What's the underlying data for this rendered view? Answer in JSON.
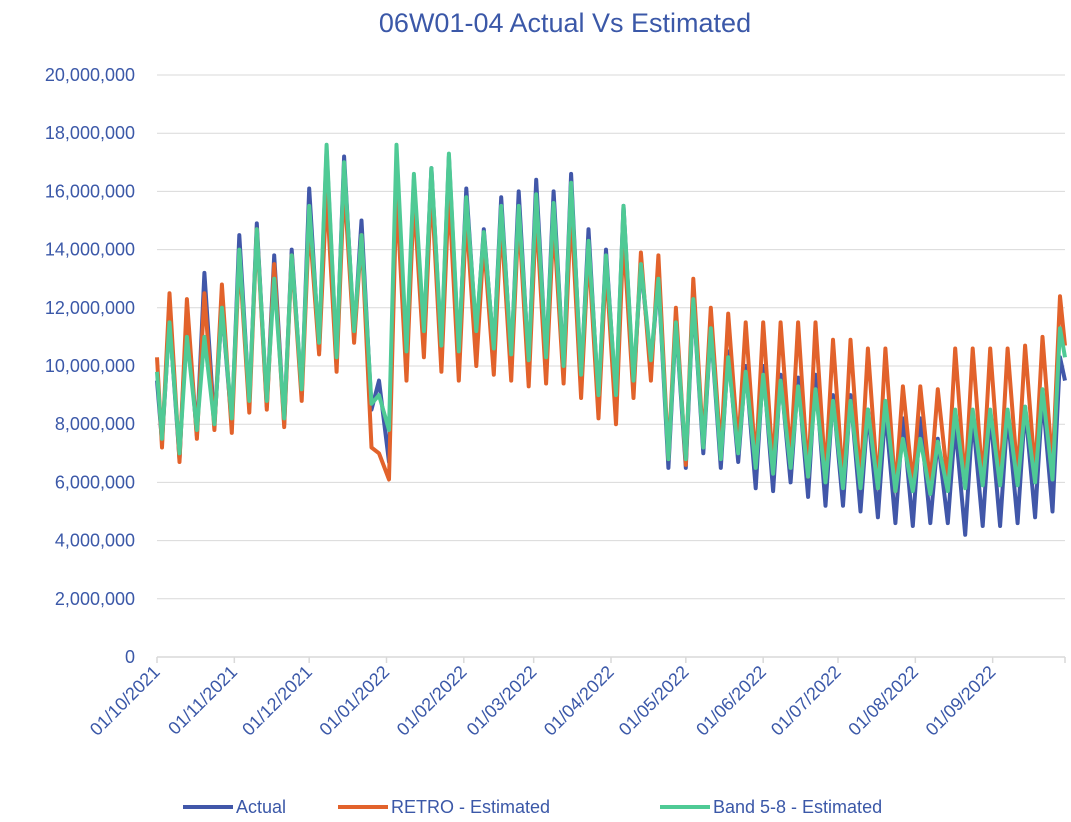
{
  "chart_data": {
    "type": "line",
    "title": "06W01-04 Actual Vs Estimated",
    "x": [
      "01/10/2021",
      "03/10/2021",
      "06/10/2021",
      "10/10/2021",
      "13/10/2021",
      "17/10/2021",
      "20/10/2021",
      "24/10/2021",
      "27/10/2021",
      "31/10/2021",
      "03/11/2021",
      "07/11/2021",
      "10/11/2021",
      "14/11/2021",
      "17/11/2021",
      "21/11/2021",
      "24/11/2021",
      "28/11/2021",
      "01/12/2021",
      "05/12/2021",
      "08/12/2021",
      "12/12/2021",
      "15/12/2021",
      "19/12/2021",
      "22/12/2021",
      "26/12/2021",
      "29/12/2021",
      "02/01/2022",
      "05/01/2022",
      "09/01/2022",
      "12/01/2022",
      "16/01/2022",
      "19/01/2022",
      "23/01/2022",
      "26/01/2022",
      "30/01/2022",
      "02/02/2022",
      "06/02/2022",
      "09/02/2022",
      "13/02/2022",
      "16/02/2022",
      "20/02/2022",
      "23/02/2022",
      "27/02/2022",
      "02/03/2022",
      "06/03/2022",
      "09/03/2022",
      "13/03/2022",
      "16/03/2022",
      "20/03/2022",
      "23/03/2022",
      "27/03/2022",
      "30/03/2022",
      "03/04/2022",
      "06/04/2022",
      "10/04/2022",
      "13/04/2022",
      "17/04/2022",
      "20/04/2022",
      "24/04/2022",
      "27/04/2022",
      "01/05/2022",
      "04/05/2022",
      "08/05/2022",
      "11/05/2022",
      "15/05/2022",
      "18/05/2022",
      "22/05/2022",
      "25/05/2022",
      "29/05/2022",
      "01/06/2022",
      "05/06/2022",
      "08/06/2022",
      "12/06/2022",
      "15/06/2022",
      "19/06/2022",
      "22/06/2022",
      "26/06/2022",
      "29/06/2022",
      "03/07/2022",
      "06/07/2022",
      "10/07/2022",
      "13/07/2022",
      "17/07/2022",
      "20/07/2022",
      "24/07/2022",
      "27/07/2022",
      "31/07/2022",
      "03/08/2022",
      "07/08/2022",
      "10/08/2022",
      "14/08/2022",
      "17/08/2022",
      "21/08/2022",
      "24/08/2022",
      "28/08/2022",
      "31/08/2022",
      "04/09/2022",
      "07/09/2022",
      "11/09/2022",
      "14/09/2022",
      "18/09/2022",
      "21/09/2022",
      "25/09/2022",
      "28/09/2022",
      "30/09/2022"
    ],
    "series": [
      {
        "name": "Actual",
        "color": "#4157a9",
        "values": [
          9500000,
          7400000,
          11600000,
          6800000,
          11800000,
          7600000,
          13200000,
          8000000,
          12000000,
          8000000,
          14500000,
          8700000,
          14900000,
          8600000,
          13800000,
          8000000,
          14000000,
          9000000,
          16100000,
          10500000,
          17400000,
          10200000,
          17200000,
          11000000,
          15000000,
          8500000,
          9500000,
          6700000,
          16500000,
          10200000,
          16400000,
          11000000,
          16800000,
          10500000,
          17200000,
          10300000,
          16100000,
          11000000,
          14700000,
          10500000,
          15800000,
          10200000,
          16000000,
          10000000,
          16400000,
          10200000,
          16000000,
          9900000,
          16600000,
          9500000,
          14700000,
          8700000,
          14000000,
          8800000,
          15500000,
          9300000,
          13500000,
          10000000,
          13000000,
          6500000,
          11500000,
          6500000,
          12300000,
          7000000,
          11300000,
          6500000,
          10500000,
          6700000,
          10000000,
          5800000,
          10000000,
          5700000,
          9700000,
          6000000,
          9600000,
          5500000,
          9700000,
          5200000,
          9000000,
          5200000,
          9000000,
          5000000,
          8500000,
          4800000,
          8500000,
          4600000,
          8200000,
          4500000,
          8200000,
          4600000,
          7500000,
          4600000,
          8000000,
          4200000,
          8300000,
          4500000,
          8400000,
          4500000,
          8400000,
          4600000,
          8600000,
          4800000,
          9000000,
          5000000,
          10300000,
          9500000
        ]
      },
      {
        "name": "RETRO - Estimated",
        "color": "#e2622b",
        "values": [
          10300000,
          7200000,
          12500000,
          6700000,
          12300000,
          7500000,
          12500000,
          7800000,
          12800000,
          7700000,
          13800000,
          8400000,
          14700000,
          8500000,
          13500000,
          7900000,
          13800000,
          8800000,
          15000000,
          10400000,
          16000000,
          9800000,
          16300000,
          10800000,
          14500000,
          7200000,
          7000000,
          6100000,
          16000000,
          9500000,
          15800000,
          10300000,
          16200000,
          9800000,
          16000000,
          9500000,
          15200000,
          10000000,
          14300000,
          9700000,
          15000000,
          9500000,
          15200000,
          9300000,
          15300000,
          9400000,
          15000000,
          9400000,
          15400000,
          8900000,
          14000000,
          8200000,
          13500000,
          8000000,
          14500000,
          8900000,
          13900000,
          9500000,
          13800000,
          6800000,
          12000000,
          6600000,
          13000000,
          7300000,
          12000000,
          7000000,
          11800000,
          7200000,
          11500000,
          6600000,
          11500000,
          6500000,
          11500000,
          6800000,
          11500000,
          6200000,
          11500000,
          6200000,
          10900000,
          6000000,
          10900000,
          6000000,
          10600000,
          5800000,
          10600000,
          5700000,
          9300000,
          5900000,
          9300000,
          5900000,
          9200000,
          6000000,
          10600000,
          5900000,
          10600000,
          6000000,
          10600000,
          6000000,
          10600000,
          6200000,
          10700000,
          6300000,
          11000000,
          6500000,
          12400000,
          10700000
        ]
      },
      {
        "name": "Band 5-8 - Estimated",
        "color": "#4fca95",
        "values": [
          9800000,
          7500000,
          11500000,
          7000000,
          11000000,
          7800000,
          11000000,
          8000000,
          12000000,
          8200000,
          14000000,
          8800000,
          14700000,
          8800000,
          13000000,
          8200000,
          13800000,
          9200000,
          15500000,
          10800000,
          17600000,
          10300000,
          17000000,
          11200000,
          14500000,
          8700000,
          9000000,
          7800000,
          17600000,
          10500000,
          16600000,
          11200000,
          16800000,
          10700000,
          17300000,
          10500000,
          15800000,
          11200000,
          14600000,
          10600000,
          15500000,
          10400000,
          15500000,
          10200000,
          15900000,
          10300000,
          15600000,
          10000000,
          16300000,
          9700000,
          14300000,
          9000000,
          13800000,
          9000000,
          15500000,
          9500000,
          13500000,
          10200000,
          13000000,
          6800000,
          11500000,
          6800000,
          12300000,
          7200000,
          11300000,
          6800000,
          10300000,
          7000000,
          9800000,
          6500000,
          9700000,
          6300000,
          9500000,
          6500000,
          9300000,
          6200000,
          9200000,
          6000000,
          8800000,
          5800000,
          8800000,
          5800000,
          8500000,
          5800000,
          8800000,
          5700000,
          7500000,
          5700000,
          7500000,
          5600000,
          7400000,
          5700000,
          8500000,
          5800000,
          8500000,
          5900000,
          8500000,
          5900000,
          8500000,
          5900000,
          8600000,
          6000000,
          9200000,
          6100000,
          11300000,
          10300000
        ]
      }
    ],
    "xlim": [
      "01/10/2021",
      "30/09/2022"
    ],
    "xticks": [
      "01/10/2021",
      "01/11/2021",
      "01/12/2021",
      "01/01/2022",
      "01/02/2022",
      "01/03/2022",
      "01/04/2022",
      "01/05/2022",
      "01/06/2022",
      "01/07/2022",
      "01/08/2022",
      "01/09/2022"
    ],
    "ylim": [
      0,
      20000000
    ],
    "yticks": [
      0,
      {
        "value": 2000000,
        "label": "2,000,000"
      },
      {
        "value": 4000000,
        "label": "4,000,000"
      },
      {
        "value": 6000000,
        "label": "6,000,000"
      },
      {
        "value": 8000000,
        "label": "8,000,000"
      },
      {
        "value": 10000000,
        "label": "10,000,000"
      },
      {
        "value": 12000000,
        "label": "12,000,000"
      },
      {
        "value": 14000000,
        "label": "14,000,000"
      },
      {
        "value": 16000000,
        "label": "16,000,000"
      },
      {
        "value": 18000000,
        "label": "18,000,000"
      },
      {
        "value": 20000000,
        "label": "20,000,000"
      }
    ],
    "grid": true,
    "legend": "bottom"
  }
}
